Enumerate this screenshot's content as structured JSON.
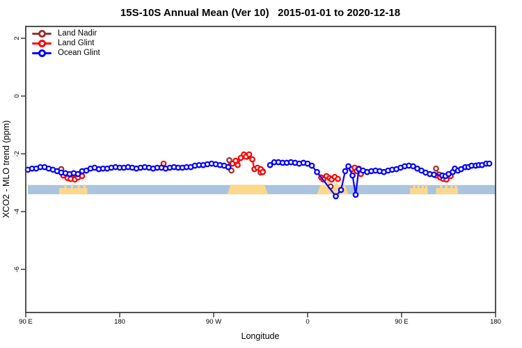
{
  "page": {
    "background": "#ffffff"
  },
  "chart_data": {
    "type": "scatter",
    "title": "15S-10S Annual Mean (Ver 10)   2015-01-01 to 2020-12-18",
    "xlabel": "Longitude",
    "ylabel": "XCO2 - MLO trend (ppm)",
    "x_axis": {
      "tick_labels": [
        "90 E",
        "180",
        "90 W",
        "0",
        "90 E",
        "180"
      ],
      "tick_positions_deg": [
        0,
        90,
        180,
        270,
        360,
        450
      ],
      "range_deg": [
        0,
        450
      ],
      "wrap_note": "longitude axis starts at 90E and wraps: 90E-180-90W-0-90E-180"
    },
    "y_axis": {
      "ticks": [
        2,
        0,
        -2,
        -4,
        -6
      ],
      "range": [
        -7.5,
        2.4
      ],
      "grid": false
    },
    "legend": {
      "position": "top-left"
    },
    "series": [
      {
        "name": "Land Nadir",
        "color": "#993333",
        "segments": [
          [
            [
              34,
              -2.53
            ]
          ],
          [
            [
              43,
              -2.8
            ],
            [
              47,
              -2.87
            ]
          ],
          [
            [
              194,
              -2.46
            ],
            [
              195,
              -2.22
            ],
            [
              197,
              -2.58
            ]
          ],
          [
            [
              210,
              -2.05
            ],
            [
              212,
              -2.1
            ]
          ],
          [
            [
              225,
              -2.65
            ],
            [
              227,
              -2.6
            ]
          ],
          [
            [
              292,
              -3.13
            ]
          ],
          [
            [
              393,
              -2.51
            ],
            [
              396,
              -2.72
            ]
          ]
        ]
      },
      {
        "name": "Land Glint",
        "color": "#ff0000",
        "segments": [
          [
            [
              36,
              -2.75
            ],
            [
              40,
              -2.84
            ],
            [
              43,
              -2.87
            ],
            [
              47,
              -2.89
            ],
            [
              50,
              -2.82
            ],
            [
              54,
              -2.77
            ]
          ],
          [
            [
              132,
              -2.34
            ]
          ],
          [
            [
              198,
              -2.34
            ],
            [
              201,
              -2.24
            ],
            [
              203,
              -2.39
            ],
            [
              206,
              -2.14
            ],
            [
              209,
              -2.02
            ],
            [
              211,
              -2.1
            ],
            [
              214,
              -2.02
            ],
            [
              217,
              -2.19
            ],
            [
              219,
              -2.53
            ],
            [
              222,
              -2.48
            ],
            [
              225,
              -2.53
            ],
            [
              227,
              -2.63
            ]
          ],
          [
            [
              283,
              -2.82
            ],
            [
              285,
              -2.89
            ],
            [
              288,
              -2.77
            ],
            [
              291,
              -2.84
            ],
            [
              293,
              -2.89
            ],
            [
              296,
              -2.8
            ],
            [
              299,
              -2.87
            ]
          ],
          [
            [
              312,
              -2.53
            ],
            [
              315,
              -2.48
            ],
            [
              317,
              -2.6
            ],
            [
              319,
              -2.51
            ],
            [
              321,
              -2.7
            ]
          ],
          [
            [
              393,
              -2.75
            ],
            [
              397,
              -2.82
            ],
            [
              400,
              -2.87
            ],
            [
              403,
              -2.89
            ],
            [
              407,
              -2.77
            ]
          ]
        ]
      },
      {
        "name": "Ocean Glint",
        "color": "#0000ff",
        "segments": [
          [
            [
              2,
              -2.55
            ],
            [
              6,
              -2.51
            ],
            [
              10,
              -2.51
            ],
            [
              14,
              -2.46
            ],
            [
              18,
              -2.46
            ],
            [
              22,
              -2.51
            ],
            [
              26,
              -2.55
            ],
            [
              30,
              -2.6
            ],
            [
              34,
              -2.65
            ],
            [
              38,
              -2.67
            ],
            [
              42,
              -2.7
            ],
            [
              46,
              -2.67
            ],
            [
              50,
              -2.7
            ],
            [
              54,
              -2.6
            ],
            [
              58,
              -2.58
            ],
            [
              62,
              -2.51
            ],
            [
              66,
              -2.48
            ],
            [
              70,
              -2.53
            ],
            [
              74,
              -2.51
            ],
            [
              78,
              -2.51
            ],
            [
              82,
              -2.48
            ],
            [
              86,
              -2.46
            ],
            [
              90,
              -2.48
            ],
            [
              94,
              -2.48
            ],
            [
              98,
              -2.46
            ],
            [
              102,
              -2.48
            ],
            [
              106,
              -2.51
            ],
            [
              110,
              -2.48
            ],
            [
              114,
              -2.46
            ],
            [
              118,
              -2.48
            ],
            [
              122,
              -2.51
            ],
            [
              126,
              -2.48
            ],
            [
              130,
              -2.48
            ],
            [
              134,
              -2.51
            ],
            [
              138,
              -2.48
            ],
            [
              142,
              -2.46
            ],
            [
              146,
              -2.48
            ],
            [
              150,
              -2.48
            ],
            [
              154,
              -2.46
            ],
            [
              158,
              -2.46
            ],
            [
              162,
              -2.41
            ],
            [
              166,
              -2.39
            ],
            [
              170,
              -2.39
            ],
            [
              174,
              -2.36
            ],
            [
              178,
              -2.34
            ],
            [
              182,
              -2.36
            ],
            [
              186,
              -2.39
            ],
            [
              190,
              -2.41
            ],
            [
              194,
              -2.46
            ]
          ],
          [
            [
              234,
              -2.39
            ],
            [
              238,
              -2.29
            ],
            [
              242,
              -2.29
            ],
            [
              246,
              -2.31
            ],
            [
              250,
              -2.31
            ],
            [
              254,
              -2.29
            ],
            [
              258,
              -2.31
            ],
            [
              262,
              -2.34
            ],
            [
              266,
              -2.31
            ],
            [
              270,
              -2.34
            ],
            [
              274,
              -2.41
            ],
            [
              279,
              -2.63
            ],
            [
              297,
              -3.47
            ],
            [
              302,
              -3.25
            ],
            [
              306,
              -2.6
            ],
            [
              309,
              -2.43
            ],
            [
              313,
              -2.75
            ],
            [
              316,
              -3.42
            ],
            [
              319,
              -2.53
            ],
            [
              323,
              -2.58
            ],
            [
              327,
              -2.63
            ],
            [
              331,
              -2.6
            ],
            [
              335,
              -2.58
            ],
            [
              339,
              -2.6
            ],
            [
              343,
              -2.63
            ],
            [
              347,
              -2.58
            ],
            [
              351,
              -2.55
            ],
            [
              355,
              -2.53
            ],
            [
              359,
              -2.48
            ],
            [
              363,
              -2.43
            ],
            [
              367,
              -2.41
            ],
            [
              371,
              -2.43
            ],
            [
              375,
              -2.51
            ],
            [
              379,
              -2.58
            ],
            [
              383,
              -2.65
            ],
            [
              387,
              -2.7
            ],
            [
              391,
              -2.72
            ],
            [
              399,
              -2.75
            ],
            [
              402,
              -2.77
            ],
            [
              405,
              -2.7
            ],
            [
              409,
              -2.63
            ],
            [
              411,
              -2.51
            ],
            [
              414,
              -2.58
            ],
            [
              417,
              -2.53
            ],
            [
              421,
              -2.46
            ],
            [
              424,
              -2.46
            ],
            [
              427,
              -2.41
            ],
            [
              431,
              -2.41
            ],
            [
              434,
              -2.39
            ],
            [
              437,
              -2.39
            ],
            [
              441,
              -2.34
            ],
            [
              444,
              -2.34
            ]
          ]
        ]
      }
    ],
    "ocean_band": {
      "color": "#abc4de",
      "value_top": -3.08,
      "value_bottom": -3.4,
      "from_deg": 2,
      "to_deg": 450
    },
    "land_patches": {
      "color": "#fcd88b",
      "regions": [
        {
          "from_deg": 32,
          "to_deg": 59,
          "kind": "speckled"
        },
        {
          "from_deg": 193,
          "to_deg": 232,
          "kind": "solid"
        },
        {
          "from_deg": 279,
          "to_deg": 309,
          "kind": "solid-irregular"
        },
        {
          "from_deg": 368,
          "to_deg": 385,
          "kind": "speckled"
        },
        {
          "from_deg": 393,
          "to_deg": 414,
          "kind": "speckled"
        }
      ]
    }
  }
}
